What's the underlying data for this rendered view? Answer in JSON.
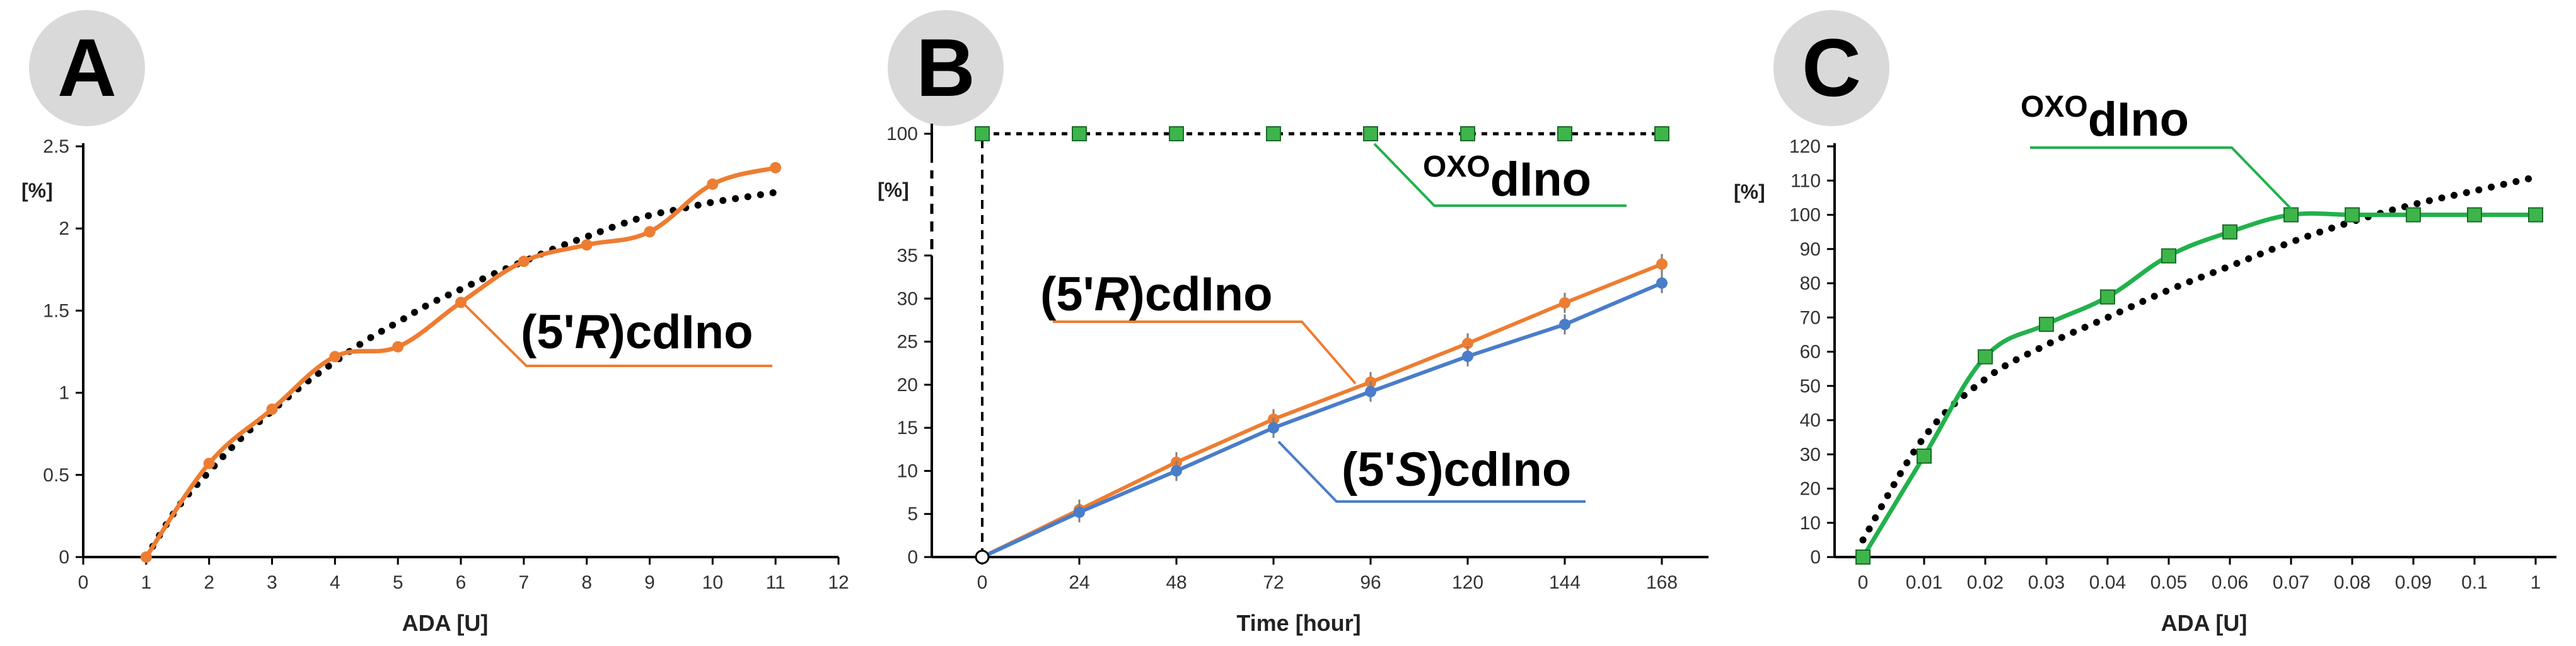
{
  "colors": {
    "orange": "#ED7D31",
    "blue": "#4A7DC9",
    "green": "#22B14C",
    "marker_green": "#3DB54A",
    "badge": "#d9d9d9",
    "fit": "#000000"
  },
  "chart_data": [
    {
      "type": "line",
      "panel": "A",
      "xlabel": "ADA  [U]",
      "ylabel": "[%]",
      "xlim": [
        0,
        12
      ],
      "ylim": [
        0,
        2.5
      ],
      "xticks": [
        "0",
        "1",
        "2",
        "3",
        "4",
        "5",
        "6",
        "7",
        "8",
        "9",
        "10",
        "11",
        "12"
      ],
      "yticks": [
        "0",
        "0.5",
        "1",
        "1.5",
        "2",
        "2.5"
      ],
      "series": [
        {
          "name": "(5'R)cdIno",
          "color": "orange",
          "x": [
            1,
            2,
            3,
            4,
            5,
            6,
            7,
            8,
            9,
            10,
            11
          ],
          "y": [
            0,
            0.57,
            0.9,
            1.22,
            1.28,
            1.55,
            1.8,
            1.9,
            1.98,
            2.27,
            2.37
          ]
        }
      ],
      "trendline": {
        "style": "dotted",
        "x": [
          1,
          1.5,
          2,
          2.5,
          3,
          3.5,
          4,
          4.5,
          5,
          5.5,
          6,
          6.5,
          7,
          7.5,
          8,
          8.5,
          9,
          9.5,
          10,
          10.5,
          11
        ],
        "y": [
          0,
          0.3,
          0.52,
          0.72,
          0.89,
          1.05,
          1.19,
          1.32,
          1.43,
          1.54,
          1.63,
          1.72,
          1.8,
          1.88,
          1.95,
          2.02,
          2.08,
          2.12,
          2.16,
          2.19,
          2.22
        ]
      },
      "annotations": [
        {
          "main": "(5'",
          "italic": "R",
          "tail": ")cdIno"
        }
      ]
    },
    {
      "type": "line",
      "panel": "B",
      "xlabel": "Time  [hour]",
      "ylabel": "[%]",
      "xlim": [
        0,
        168
      ],
      "xticks": [
        "0",
        "24",
        "48",
        "72",
        "96",
        "120",
        "144",
        "168"
      ],
      "yticks": [
        "0",
        "5",
        "10",
        "15",
        "20",
        "25",
        "30",
        "35",
        "100"
      ],
      "axis_break": true,
      "series": [
        {
          "name": "(5'R)cdIno",
          "color": "orange",
          "x": [
            0,
            24,
            48,
            72,
            96,
            120,
            144,
            168
          ],
          "y": [
            0,
            5.5,
            11,
            16,
            20.3,
            24.8,
            29.5,
            34
          ]
        },
        {
          "name": "(5'S)cdIno",
          "color": "blue",
          "x": [
            0,
            24,
            48,
            72,
            96,
            120,
            144,
            168
          ],
          "y": [
            0,
            5.2,
            10,
            15,
            19.2,
            23.3,
            27,
            31.8
          ]
        },
        {
          "name": "OXOdIno",
          "color": "marker_green",
          "x": [
            0,
            24,
            48,
            72,
            96,
            120,
            144,
            168
          ],
          "y": [
            100,
            100,
            100,
            100,
            100,
            100,
            100,
            100
          ]
        }
      ],
      "annotations": [
        {
          "main": "(5'",
          "italic": "R",
          "tail": ")cdIno"
        },
        {
          "main": "(5'",
          "italic": "S",
          "tail": ")cdIno"
        },
        {
          "sup": "OXO",
          "tail": "dIno"
        }
      ]
    },
    {
      "type": "line",
      "panel": "C",
      "xlabel": "ADA [U]",
      "ylabel": "[%]",
      "xticks": [
        "0",
        "0.01",
        "0.02",
        "0.03",
        "0.04",
        "0.05",
        "0.06",
        "0.07",
        "0.08",
        "0.09",
        "0.1",
        "1"
      ],
      "yticks": [
        "0",
        "10",
        "20",
        "30",
        "40",
        "50",
        "60",
        "70",
        "80",
        "90",
        "100",
        "110",
        "120"
      ],
      "ylim": [
        0,
        120
      ],
      "series": [
        {
          "name": "OXOdIno",
          "color": "green",
          "y": [
            0,
            29.5,
            58.5,
            68,
            76,
            88,
            95,
            100,
            100,
            100,
            100,
            100
          ]
        }
      ],
      "trendline": {
        "style": "dotted",
        "y": [
          5,
          35,
          52,
          62,
          70,
          78,
          85,
          92,
          98,
          103,
          107,
          111
        ]
      },
      "annotations": [
        {
          "sup": "OXO",
          "tail": "dIno"
        }
      ]
    }
  ],
  "panels": [
    "A",
    "B",
    "C"
  ]
}
